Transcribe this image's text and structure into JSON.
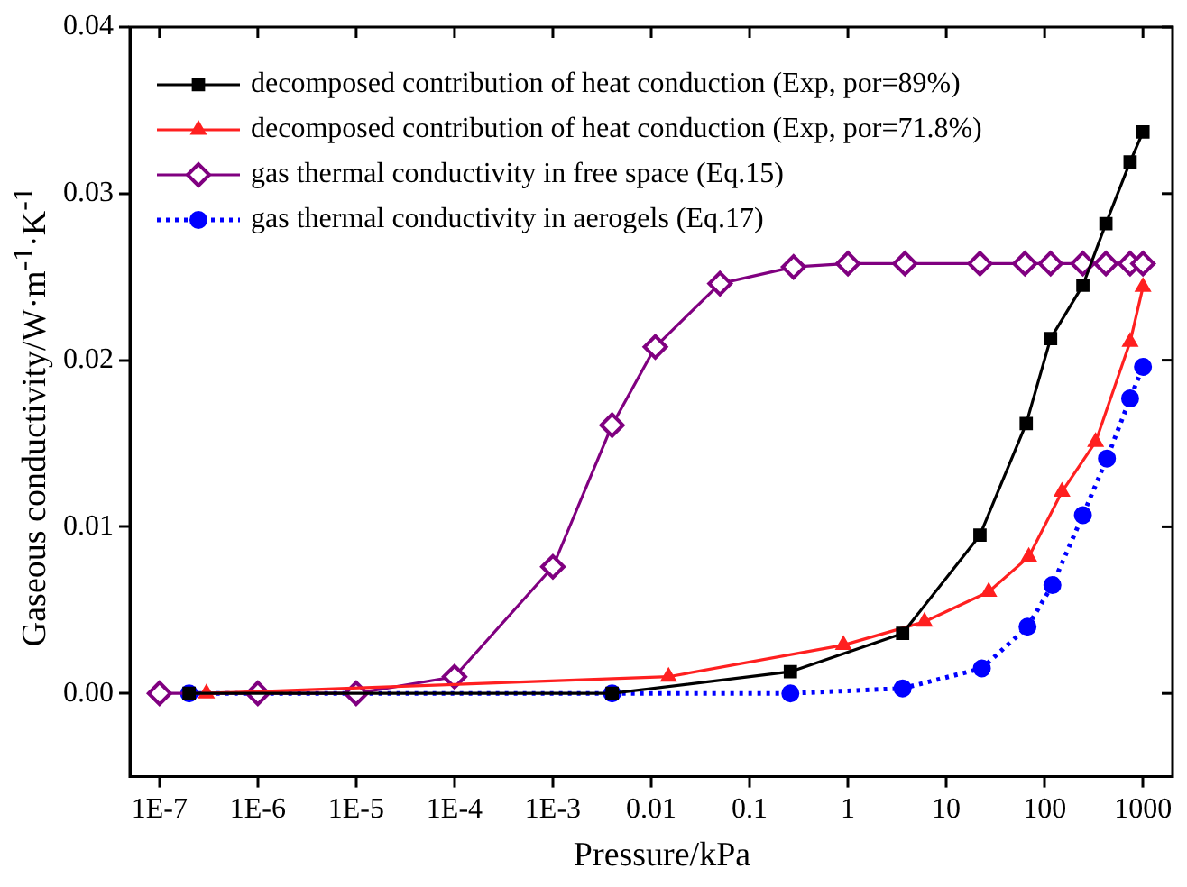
{
  "chart_data": {
    "type": "line",
    "xlabel": "Pressure/kPa",
    "ylabel": "Gaseous conductivity/W·m$^{-1}$·K$^{-1}$",
    "log": "x",
    "legend": "top left",
    "grid": false,
    "xlim": [
      5e-08,
      2000
    ],
    "ylim": [
      -0.005,
      0.04
    ],
    "xticks": [
      {
        "value": 1e-07,
        "label": "1E-7"
      },
      {
        "value": 1e-06,
        "label": "1E-6"
      },
      {
        "value": 1e-05,
        "label": "1E-5"
      },
      {
        "value": 0.0001,
        "label": "1E-4"
      },
      {
        "value": 0.001,
        "label": "1E-3"
      },
      0.01,
      0.1,
      1,
      10,
      100,
      1000
    ],
    "yticks": [
      {
        "value": 0,
        "label": "0.00"
      },
      0.01,
      0.02,
      0.03,
      {
        "value": 0.04,
        "label": "0.04"
      }
    ],
    "series": [
      {
        "name": "decomposed contribution of heat conduction (Exp, por=89%)",
        "color": "#000000",
        "marker": "square",
        "line_style": "solid",
        "x": [
          2e-07,
          0.004,
          0.26,
          3.6,
          22,
          65,
          115,
          245,
          420,
          740,
          1000
        ],
        "values": [
          0,
          0,
          0.0013,
          0.0036,
          0.0095,
          0.0162,
          0.0213,
          0.0245,
          0.0282,
          0.0319,
          0.0337
        ]
      },
      {
        "name": "decomposed contribution of heat conduction (Exp, por=71.8%)",
        "color": "#ff2020",
        "marker": "triangle",
        "line_style": "solid",
        "x": [
          3e-07,
          0.015,
          0.9,
          6,
          27,
          69,
          150,
          330,
          740,
          1000
        ],
        "values": [
          0,
          0.001,
          0.0029,
          0.0043,
          0.0061,
          0.0082,
          0.0121,
          0.0151,
          0.0211,
          0.0244
        ]
      },
      {
        "name": "gas thermal conductivity in free space (Eq.15)",
        "color": "#800080",
        "marker": "diamond",
        "line_style": "solid",
        "x": [
          1e-07,
          1e-06,
          1e-05,
          0.0001,
          0.001,
          0.004,
          0.011,
          0.05,
          0.28,
          1,
          3.8,
          22,
          63,
          115,
          245,
          420,
          740,
          1000
        ],
        "values": [
          0,
          0,
          0,
          0.001,
          0.0076,
          0.0161,
          0.0208,
          0.0246,
          0.0256,
          0.0258,
          0.0258,
          0.0258,
          0.0258,
          0.0258,
          0.0258,
          0.0258,
          0.0258,
          0.0258
        ]
      },
      {
        "name": "gas thermal conductivity in aerogels (Eq.17)",
        "color": "#0000ff",
        "marker": "circle",
        "line_style": "dotted",
        "x": [
          2e-07,
          0.004,
          0.26,
          3.6,
          23,
          67,
          120,
          245,
          430,
          740,
          1000
        ],
        "values": [
          0,
          0,
          0,
          0.0003,
          0.0015,
          0.004,
          0.0065,
          0.0107,
          0.0141,
          0.0177,
          0.0196
        ]
      }
    ]
  }
}
